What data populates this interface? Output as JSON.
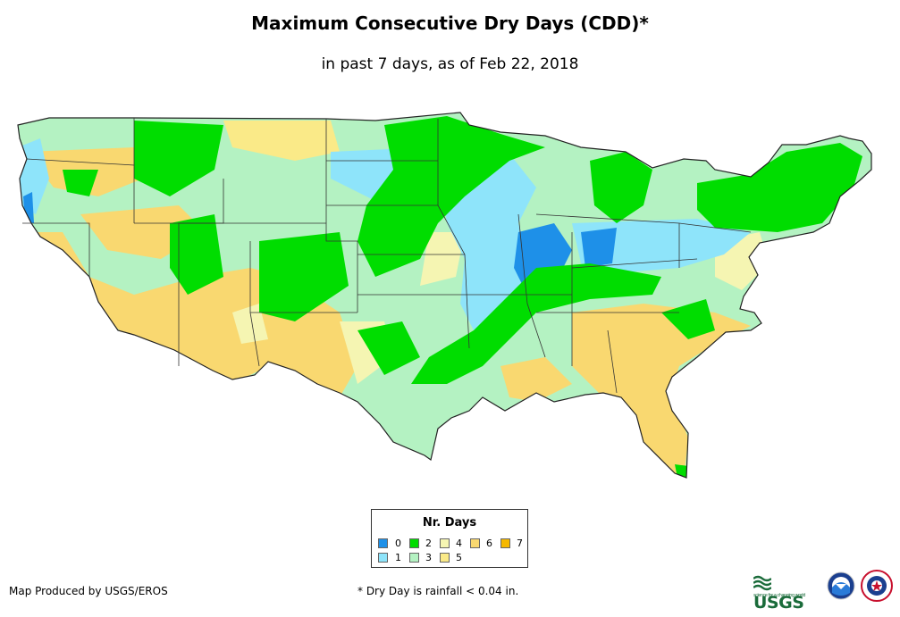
{
  "title": "Maximum Consecutive Dry Days (CDD)*",
  "subtitle": "in past 7 days, as of Feb 22, 2018",
  "legend": {
    "title": "Nr. Days",
    "items": [
      {
        "label": "0",
        "color": "#1e90e8"
      },
      {
        "label": "1",
        "color": "#8ee4fa"
      },
      {
        "label": "2",
        "color": "#00dd00"
      },
      {
        "label": "3",
        "color": "#b4f2c2"
      },
      {
        "label": "4",
        "color": "#f5f5b2"
      },
      {
        "label": "5",
        "color": "#faea88"
      },
      {
        "label": "6",
        "color": "#f9d870"
      },
      {
        "label": "7",
        "color": "#f5b800"
      }
    ]
  },
  "credit": "Map Produced by USGS/EROS",
  "footnote": "* Dry Day is rainfall < 0.04 in.",
  "logos": {
    "usgs": "USGS",
    "usgs_tagline": "science for a changing world",
    "noaa": "NOAA",
    "nws": "National Weather Service"
  }
}
